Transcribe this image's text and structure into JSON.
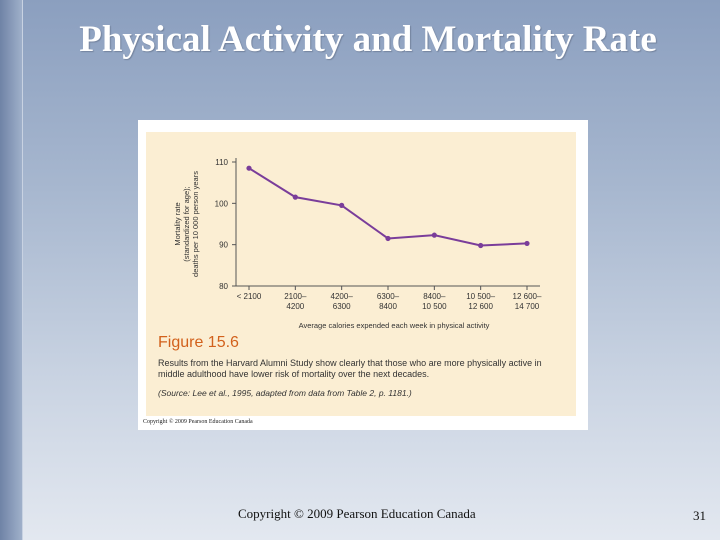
{
  "slide": {
    "title": "Physical Activity and Mortality Rate",
    "footer": "Copyright © 2009 Pearson Education Canada",
    "page_number": "31"
  },
  "figure": {
    "number": "Figure 15.6",
    "caption": "Results from the Harvard Alumni Study show clearly that those who are more physically active in middle adulthood have lower risk of mortality over the next decades.",
    "source": "(Source: Lee et al., 1995, adapted from data from Table 2, p. 1181.)",
    "copyright": "Copyright © 2009 Pearson Education Canada",
    "colors": {
      "line": "#7a3d9a",
      "number": "#d2611c",
      "panel": "#fbeed3"
    }
  },
  "chart_data": {
    "type": "line",
    "categories": [
      [
        "< 2100"
      ],
      [
        "2100–",
        "4200"
      ],
      [
        "4200–",
        "6300"
      ],
      [
        "6300–",
        "8400"
      ],
      [
        "8400–",
        "10 500"
      ],
      [
        "10 500–",
        "12 600"
      ],
      [
        "12 600–",
        "14 700"
      ]
    ],
    "values": [
      108.5,
      101.5,
      99.5,
      91.5,
      92.3,
      89.8,
      90.3
    ],
    "ylim": [
      80,
      110
    ],
    "yticks": [
      80,
      90,
      100,
      110
    ],
    "ylabel": [
      "Mortality rate",
      "(standardized for age);",
      "deaths per 10 000 person years"
    ],
    "xlabel": "Average calories expended each week in physical activity"
  }
}
